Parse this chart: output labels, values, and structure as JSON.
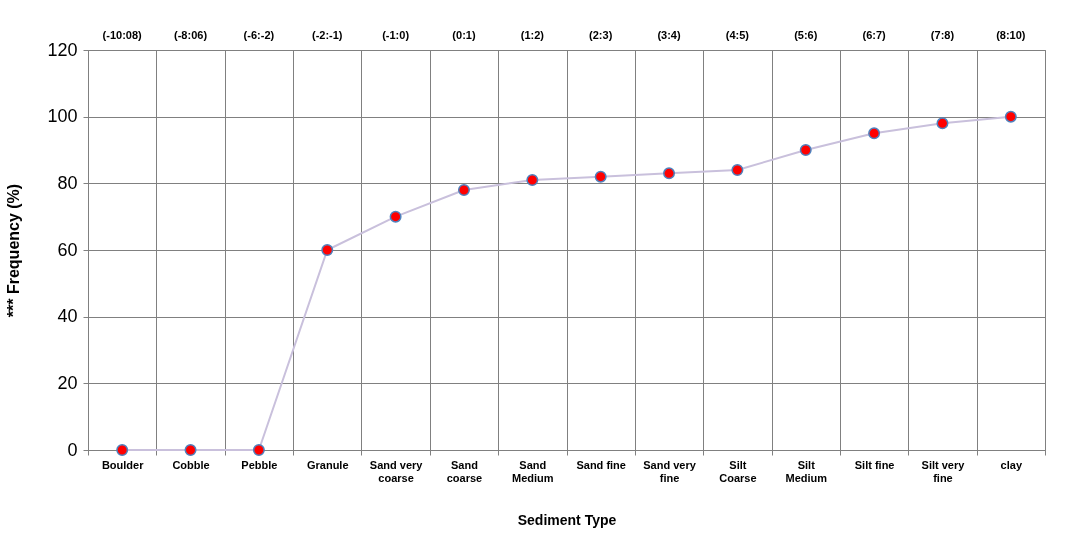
{
  "chart_data": {
    "type": "line",
    "xlabel": "Sediment Type",
    "ylabel": "*** Frequency (%)",
    "categories": [
      "Boulder",
      "Cobble",
      "Pebble",
      "Granule",
      "Sand very coarse",
      "Sand coarse",
      "Sand Medium",
      "Sand fine",
      "Sand very fine",
      "Silt Coarse",
      "Silt Medium",
      "Silt fine",
      "Silt very fine",
      "clay"
    ],
    "series": [
      {
        "color": "#c9c0dc",
        "values": [
          0,
          0,
          0,
          60,
          70,
          78,
          81,
          82,
          83,
          84,
          90,
          95,
          98,
          100
        ]
      }
    ],
    "ylim": [
      0,
      120
    ],
    "yticks": [
      0,
      20,
      40,
      60,
      80,
      100,
      120
    ],
    "grid": true,
    "marker": "circle",
    "line_style": "solid",
    "annotations": [
      "(-10:08)",
      "(-8:06)",
      "(-6:-2)",
      "(-2:-1)",
      "(-1:0)",
      "(0:1)",
      "(1:2)",
      "(2:3)",
      "(3:4)",
      "(4:5)",
      "(5:6)",
      "(6:7)",
      "(7:8)",
      "(8:10)"
    ]
  }
}
